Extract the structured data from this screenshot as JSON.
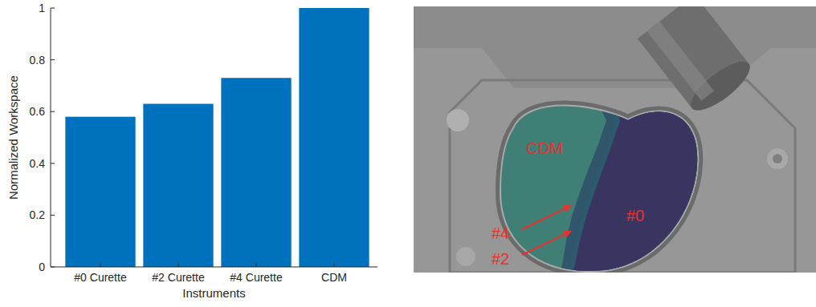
{
  "chart_data": {
    "type": "bar",
    "categories": [
      "#0 Curette",
      "#2 Curette",
      "#4 Curette",
      "CDM"
    ],
    "values": [
      0.58,
      0.63,
      0.73,
      1.0
    ],
    "color": "#0072bd",
    "ylim": [
      0,
      1
    ],
    "yticks": [
      0,
      0.2,
      0.4,
      0.6,
      0.8,
      1
    ],
    "ylabel": "Normalized Workspace",
    "xlabel": "Instruments",
    "grid": false
  },
  "image_labels": [
    "CDM",
    "#0",
    "#4",
    "#2"
  ]
}
